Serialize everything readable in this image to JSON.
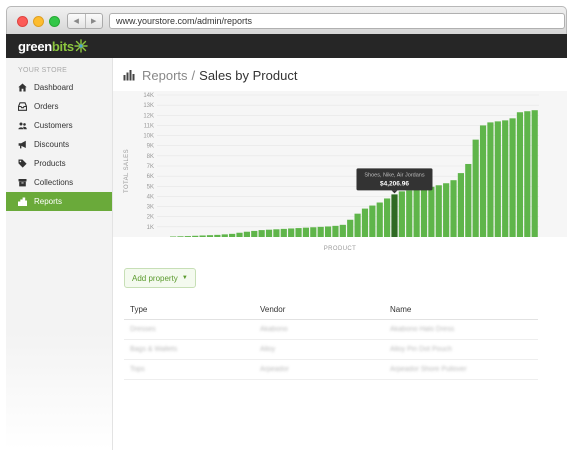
{
  "browser": {
    "url": "www.yourstore.com/admin/reports",
    "back_icon": "◀",
    "forward_icon": "▶"
  },
  "app": {
    "logo_green": "green",
    "logo_bits": "bits",
    "brand_color": "#6aaa3a"
  },
  "sidebar": {
    "heading": "YOUR STORE",
    "items": [
      {
        "label": "Dashboard",
        "icon": "home-icon"
      },
      {
        "label": "Orders",
        "icon": "inbox-icon"
      },
      {
        "label": "Customers",
        "icon": "users-icon"
      },
      {
        "label": "Discounts",
        "icon": "megaphone-icon"
      },
      {
        "label": "Products",
        "icon": "tag-icon"
      },
      {
        "label": "Collections",
        "icon": "box-icon"
      },
      {
        "label": "Reports",
        "icon": "bar-chart-icon",
        "active": true
      }
    ]
  },
  "page": {
    "breadcrumb": "Reports",
    "separator": "/",
    "title": "Sales by Product"
  },
  "chart_data": {
    "type": "bar",
    "title": "",
    "xlabel": "PRODUCT",
    "ylabel": "TOTAL SALES",
    "ylim": [
      0,
      14000
    ],
    "yticks": [
      "1K",
      "2K",
      "3K",
      "4K",
      "5K",
      "6K",
      "7K",
      "8K",
      "9K",
      "10K",
      "11K",
      "12K",
      "13K",
      "14K"
    ],
    "values": [
      50,
      70,
      90,
      120,
      150,
      180,
      210,
      260,
      310,
      420,
      520,
      600,
      680,
      720,
      760,
      800,
      840,
      880,
      920,
      960,
      1000,
      1040,
      1100,
      1200,
      1700,
      2300,
      2800,
      3100,
      3400,
      3800,
      4200,
      4500,
      4600,
      4700,
      4800,
      4950,
      5100,
      5300,
      5600,
      6300,
      7200,
      9600,
      11000,
      11300,
      11400,
      11500,
      11700,
      12300,
      12400,
      12500
    ],
    "highlight_index": 30,
    "bar_color": "#5fb54a",
    "highlight_color": "#2f6a23",
    "tooltip": {
      "line1": "Shoes, Nike, Air Jordans",
      "line2": "$4,206.96"
    }
  },
  "add_property": {
    "label": "Add property",
    "caret": "▼"
  },
  "table": {
    "headers": [
      "Type",
      "Vendor",
      "Name"
    ],
    "rows": [
      [
        "Dresses",
        "Akabono",
        "Akabono Halo Dress"
      ],
      [
        "Bags & Wallets",
        "Alloy",
        "Alloy Pin Dot Pouch"
      ],
      [
        "Tops",
        "Arpeador",
        "Arpeador Shore Pullover"
      ]
    ]
  }
}
